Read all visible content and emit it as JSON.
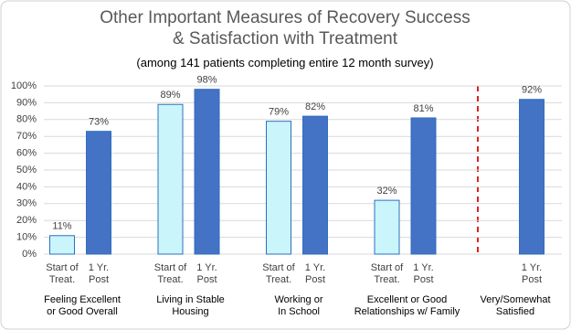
{
  "chart_data": {
    "type": "bar",
    "title": "Other Important Measures of Recovery Success\n& Satisfaction with Treatment",
    "subtitle": "(among 141 patients completing entire 12 month survey)",
    "categories": [
      "Feeling Excellent\nor Good Overall",
      "Living in Stable\nHousing",
      "Working or\nIn School",
      "Excellent or Good\nRelationships w/ Family",
      "Very/Somewhat\nSatisfied"
    ],
    "series": [
      {
        "name": "Start of\nTreat.",
        "color": "#c9f5fb",
        "values": [
          11,
          89,
          79,
          32,
          null
        ],
        "value_labels": [
          "11%",
          "89%",
          "79%",
          "32%",
          null
        ]
      },
      {
        "name": "1 Yr.\nPost",
        "color": "#4472c4",
        "values": [
          73,
          98,
          82,
          81,
          92
        ],
        "value_labels": [
          "73%",
          "98%",
          "82%",
          "81%",
          "92%"
        ]
      }
    ],
    "ylim": [
      0,
      100
    ],
    "yticks": [
      {
        "value": 0,
        "label": "0%"
      },
      {
        "value": 10,
        "label": "10%"
      },
      {
        "value": 20,
        "label": "20%"
      },
      {
        "value": 30,
        "label": "30%"
      },
      {
        "value": 40,
        "label": "40%"
      },
      {
        "value": 50,
        "label": "50%"
      },
      {
        "value": 60,
        "label": "60%"
      },
      {
        "value": 70,
        "label": "70%"
      },
      {
        "value": 80,
        "label": "80%"
      },
      {
        "value": 90,
        "label": "90%"
      },
      {
        "value": 100,
        "label": "100%"
      }
    ],
    "grid": true
  }
}
